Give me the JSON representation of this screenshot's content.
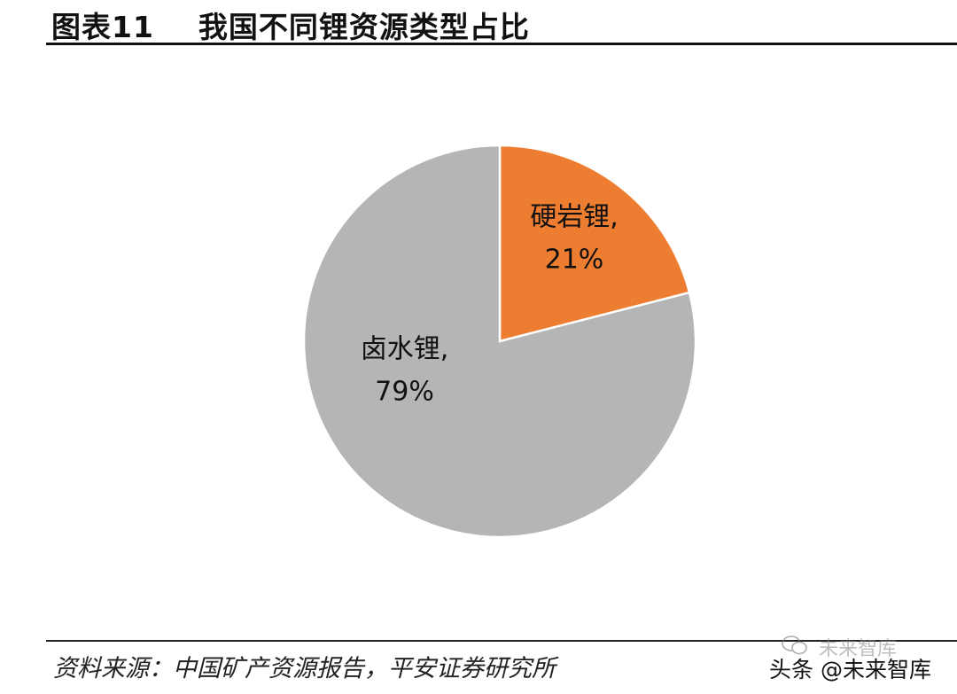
{
  "figure": {
    "title": "图表11    我国不同锂资源类型占比",
    "source": "资料来源：中国矿产资源报告，平安证券研究所"
  },
  "watermark": {
    "top": "未来智库",
    "bottom": "头条 @未来智库"
  },
  "chart_data": {
    "type": "pie",
    "title": "",
    "start_angle_deg": 0,
    "direction": "clockwise",
    "slices": [
      {
        "label": "硬岩锂,",
        "pct_label": "21%",
        "value": 21,
        "color": "#ED7D31"
      },
      {
        "label": "卤水锂,",
        "pct_label": "79%",
        "value": 79,
        "color": "#B4B5B7"
      }
    ]
  },
  "colors": {
    "orange": "#ED7D31",
    "gray": "#B4B5B7",
    "separator": "#ffffff"
  }
}
